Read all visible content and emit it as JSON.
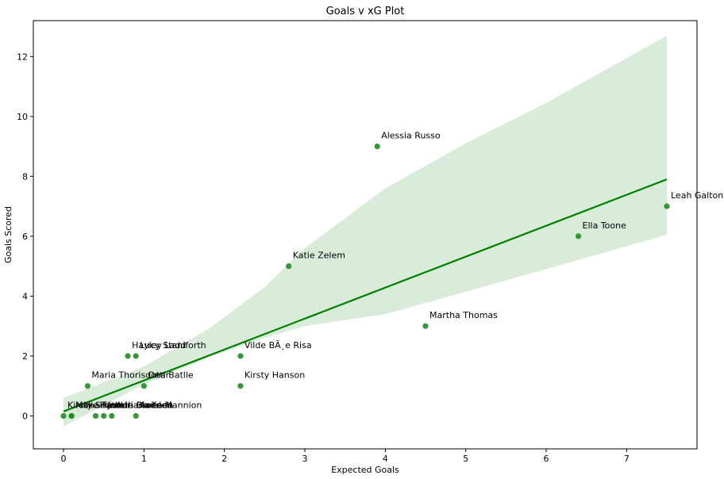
{
  "chart_data": {
    "type": "scatter",
    "title": "Goals v xG Plot",
    "xlabel": "Expected Goals",
    "ylabel": "Goals Scored",
    "xlim": [
      -0.375,
      7.875
    ],
    "ylim": [
      -1.1,
      13.2
    ],
    "xticks": [
      0,
      1,
      2,
      3,
      4,
      5,
      6,
      7
    ],
    "yticks": [
      0,
      2,
      4,
      6,
      8,
      10,
      12
    ],
    "grid": false,
    "legend": "none",
    "colors": {
      "points": "#228b22",
      "regression_line": "#008000",
      "confidence_band": "#d9ecd9",
      "axes": "#000000"
    },
    "regression_line": {
      "x": [
        0,
        7.5
      ],
      "y": [
        0.15,
        7.9
      ]
    },
    "confidence_band": {
      "x": [
        0,
        1,
        1.8,
        2.5,
        3,
        4,
        5,
        6,
        7.5
      ],
      "lower": [
        -0.35,
        1.05,
        1.95,
        2.6,
        3.0,
        3.4,
        4.15,
        4.9,
        6.05
      ],
      "upper": [
        0.6,
        1.65,
        2.9,
        4.3,
        5.6,
        7.6,
        9.1,
        10.45,
        12.7
      ]
    },
    "points": [
      {
        "label": "Alessia Russo",
        "x": 3.9,
        "y": 9
      },
      {
        "label": "Leah Galton",
        "x": 7.5,
        "y": 7
      },
      {
        "label": "Ella Toone",
        "x": 6.4,
        "y": 6
      },
      {
        "label": "Katie Zelem",
        "x": 2.8,
        "y": 5
      },
      {
        "label": "Martha Thomas",
        "x": 4.5,
        "y": 3
      },
      {
        "label": "Vilde BÃ¸e Risa",
        "x": 2.2,
        "y": 2
      },
      {
        "label": "Kirsty Hanson",
        "x": 2.2,
        "y": 1
      },
      {
        "label": "Hayley Ladd",
        "x": 0.8,
        "y": 2
      },
      {
        "label": "Lucy Staniforth",
        "x": 0.9,
        "y": 2
      },
      {
        "label": "Maria Thorisdottir",
        "x": 0.3,
        "y": 1
      },
      {
        "label": "Ona Batlle",
        "x": 1.0,
        "y": 1
      },
      {
        "label": "Kirsty Smith",
        "x": 0.0,
        "y": 0
      },
      {
        "label": "Millie Turner",
        "x": 0.1,
        "y": 0
      },
      {
        "label": "Aoife Mannion",
        "x": 0.9,
        "y": 0
      },
      {
        "label": "Adriana Leon",
        "x": 0.6,
        "y": 0
      },
      {
        "label": "Jackie Groenen",
        "x": 0.5,
        "y": 0
      },
      {
        "label": "Hannah Blundell",
        "x": 0.4,
        "y": 0
      },
      {
        "label": "Ivana Fuso",
        "x": 0.1,
        "y": 0
      }
    ]
  }
}
